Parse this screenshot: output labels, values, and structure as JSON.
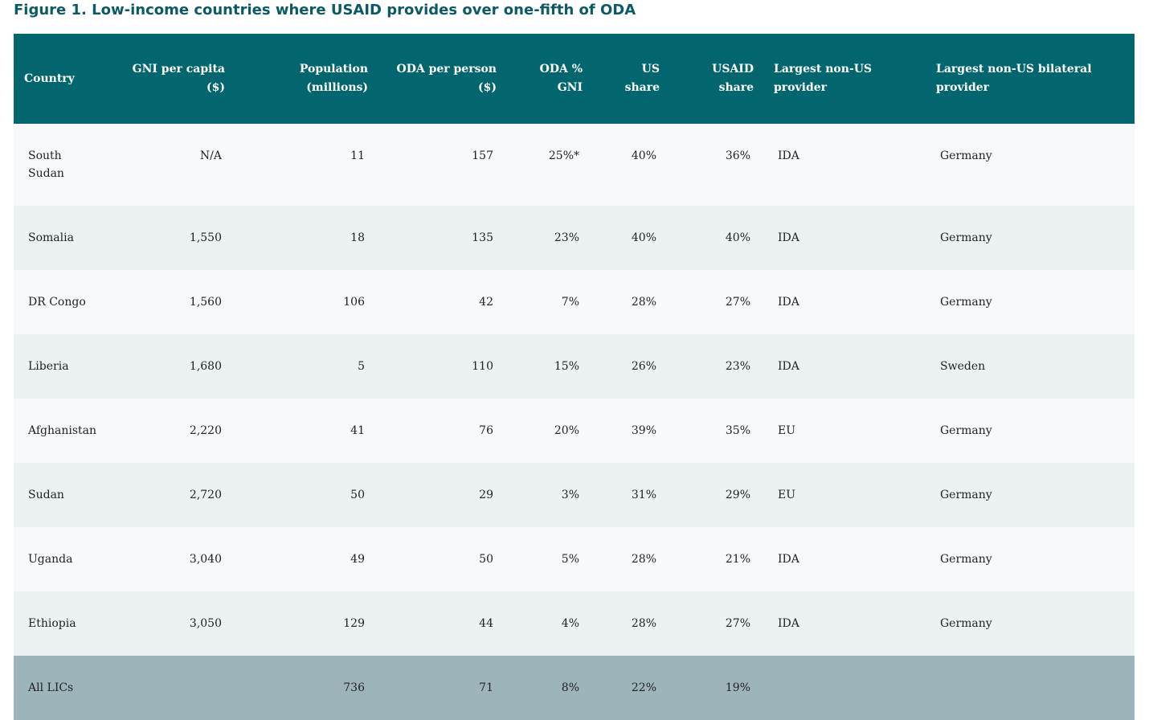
{
  "title": "Figure 1. Low-income countries where USAID provides over one-fifth of ODA",
  "columns": [
    {
      "line1": "Country",
      "line2": ""
    },
    {
      "line1": "GNI per capita",
      "line2": "($)"
    },
    {
      "line1": "Population",
      "line2": "(millions)"
    },
    {
      "line1": "ODA per person",
      "line2": "($)"
    },
    {
      "line1": "ODA %",
      "line2": "GNI"
    },
    {
      "line1": "US",
      "line2": "share"
    },
    {
      "line1": "USAID",
      "line2": "share"
    },
    {
      "line1": "Largest non-US",
      "line2": "provider"
    },
    {
      "line1": "Largest non-US bilateral",
      "line2": "provider"
    }
  ],
  "rows": [
    {
      "country": "South Sudan",
      "gni": "N/A",
      "population": "11",
      "oda_person": "157",
      "oda_gni": "25%*",
      "us_share": "40%",
      "usaid_share": "36%",
      "non_us": "IDA",
      "non_us_bilateral": "Germany"
    },
    {
      "country": "Somalia",
      "gni": "1,550",
      "population": "18",
      "oda_person": "135",
      "oda_gni": "23%",
      "us_share": "40%",
      "usaid_share": "40%",
      "non_us": "IDA",
      "non_us_bilateral": "Germany"
    },
    {
      "country": "DR Congo",
      "gni": "1,560",
      "population": "106",
      "oda_person": "42",
      "oda_gni": "7%",
      "us_share": "28%",
      "usaid_share": "27%",
      "non_us": "IDA",
      "non_us_bilateral": "Germany"
    },
    {
      "country": "Liberia",
      "gni": "1,680",
      "population": "5",
      "oda_person": "110",
      "oda_gni": "15%",
      "us_share": "26%",
      "usaid_share": "23%",
      "non_us": "IDA",
      "non_us_bilateral": "Sweden"
    },
    {
      "country": "Afghanistan",
      "gni": "2,220",
      "population": "41",
      "oda_person": "76",
      "oda_gni": "20%",
      "us_share": "39%",
      "usaid_share": "35%",
      "non_us": "EU",
      "non_us_bilateral": "Germany"
    },
    {
      "country": "Sudan",
      "gni": "2,720",
      "population": "50",
      "oda_person": "29",
      "oda_gni": "3%",
      "us_share": "31%",
      "usaid_share": "29%",
      "non_us": "EU",
      "non_us_bilateral": "Germany"
    },
    {
      "country": "Uganda",
      "gni": "3,040",
      "population": "49",
      "oda_person": "50",
      "oda_gni": "5%",
      "us_share": "28%",
      "usaid_share": "21%",
      "non_us": "IDA",
      "non_us_bilateral": "Germany"
    },
    {
      "country": "Ethiopia",
      "gni": "3,050",
      "population": "129",
      "oda_person": "44",
      "oda_gni": "4%",
      "us_share": "28%",
      "usaid_share": "27%",
      "non_us": "IDA",
      "non_us_bilateral": "Germany"
    }
  ],
  "total": {
    "country": "All LICs",
    "gni": "",
    "population": "736",
    "oda_person": "71",
    "oda_gni": "8%",
    "us_share": "22%",
    "usaid_share": "19%",
    "non_us": "",
    "non_us_bilateral": ""
  }
}
